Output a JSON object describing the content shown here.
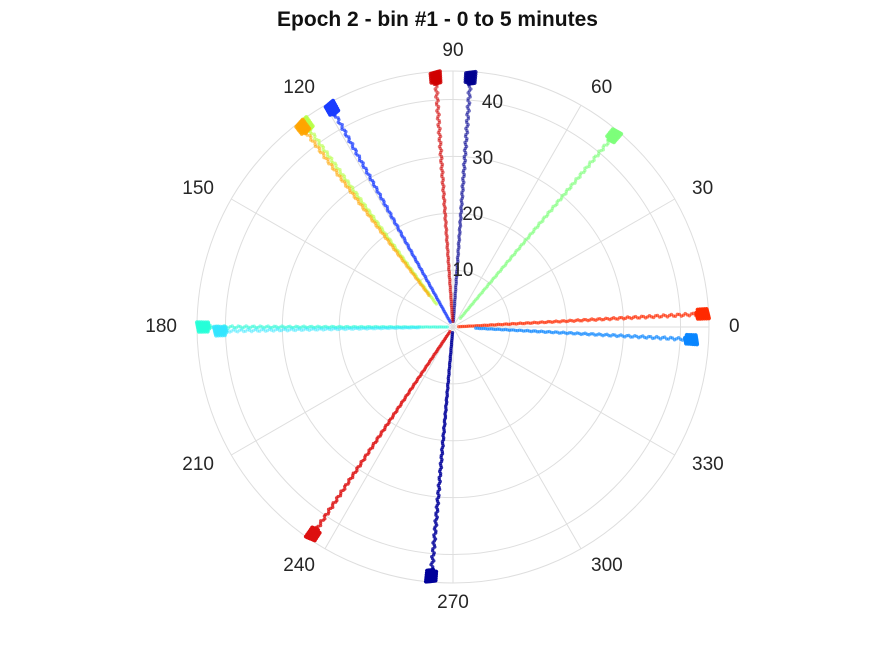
{
  "chart_data": {
    "type": "polar-scatter",
    "title": "Epoch 2 - bin #1 - 0 to 5 minutes",
    "theta_unit": "degrees",
    "theta_ticks": [
      0,
      30,
      60,
      90,
      120,
      150,
      180,
      210,
      240,
      270,
      300,
      330
    ],
    "r_ticks": [
      10,
      20,
      30,
      40
    ],
    "rlim": [
      0,
      45
    ],
    "grid": true,
    "colormap": "jet",
    "series": [
      {
        "theta": 86,
        "r_start": 1,
        "r_end": 45,
        "color": "#00008f",
        "alpha": 0.55
      },
      {
        "theta": 94,
        "r_start": 1,
        "r_end": 45,
        "color": "#d00000",
        "alpha": 0.55
      },
      {
        "theta": 119,
        "r_start": 1,
        "r_end": 45,
        "color": "#1a3cff",
        "alpha": 0.7
      },
      {
        "theta": 126,
        "r_start": 5,
        "r_end": 45,
        "color": "#b8ff48",
        "alpha": 0.6
      },
      {
        "theta": 127,
        "r_start": 7,
        "r_end": 45,
        "color": "#ffa500",
        "alpha": 0.55
      },
      {
        "theta": 50,
        "r_start": 2,
        "r_end": 45,
        "color": "#7dff7a",
        "alpha": 0.6
      },
      {
        "theta": 3,
        "r_start": 1,
        "r_end": 45,
        "color": "#ff2a00",
        "alpha": 0.65
      },
      {
        "theta": -3,
        "r_start": 4,
        "r_end": 43,
        "color": "#0a86ff",
        "alpha": 0.65
      },
      {
        "theta": 180,
        "r_start": 1,
        "r_end": 45,
        "color": "#27ffd8",
        "alpha": 0.55
      },
      {
        "theta": 181,
        "r_start": 6,
        "r_end": 42,
        "color": "#33e6ff",
        "alpha": 0.45
      },
      {
        "theta": 236,
        "r_start": 1,
        "r_end": 45,
        "color": "#dd1111",
        "alpha": 0.8
      },
      {
        "theta": 265,
        "r_start": 1,
        "r_end": 45,
        "color": "#00009a",
        "alpha": 0.8
      }
    ]
  }
}
